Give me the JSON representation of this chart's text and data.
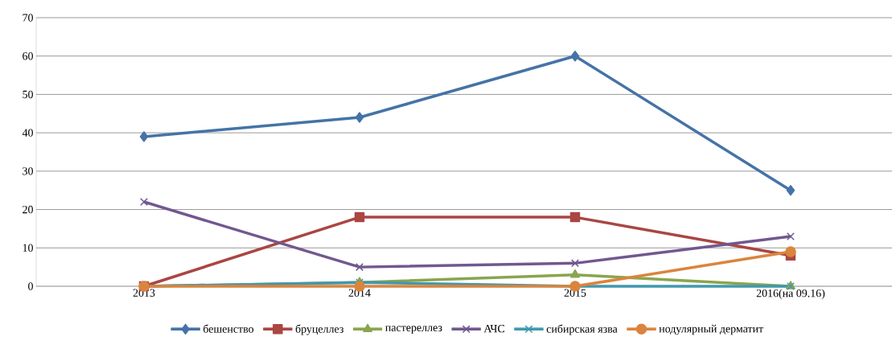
{
  "chart_data": {
    "type": "line",
    "categories": [
      "2013",
      "2014",
      "2015",
      "2016(на 09.16)"
    ],
    "series": [
      {
        "name": "бешенство",
        "color": "#4573a7",
        "marker": "diamond",
        "values": [
          39,
          44,
          60,
          25
        ]
      },
      {
        "name": "бруцеллез",
        "color": "#aa4643",
        "marker": "square",
        "values": [
          0,
          18,
          18,
          8
        ]
      },
      {
        "name": "пастереллез",
        "color": "#89a54e",
        "marker": "triangle",
        "values": [
          0,
          1,
          3,
          0
        ]
      },
      {
        "name": "АЧС",
        "color": "#71588f",
        "marker": "cross",
        "values": [
          22,
          5,
          6,
          13
        ]
      },
      {
        "name": "сибирская язва",
        "color": "#4198af",
        "marker": "cross",
        "values": [
          0,
          1,
          0,
          0
        ]
      },
      {
        "name": "нодулярный дерматит",
        "color": "#db843d",
        "marker": "circle",
        "values": [
          0,
          0,
          0,
          9
        ]
      }
    ],
    "ylim": [
      0,
      70
    ],
    "yticks": [
      0,
      10,
      20,
      30,
      40,
      50,
      60,
      70
    ],
    "grid": "y",
    "legend": "bottom",
    "line_style": "solid"
  }
}
